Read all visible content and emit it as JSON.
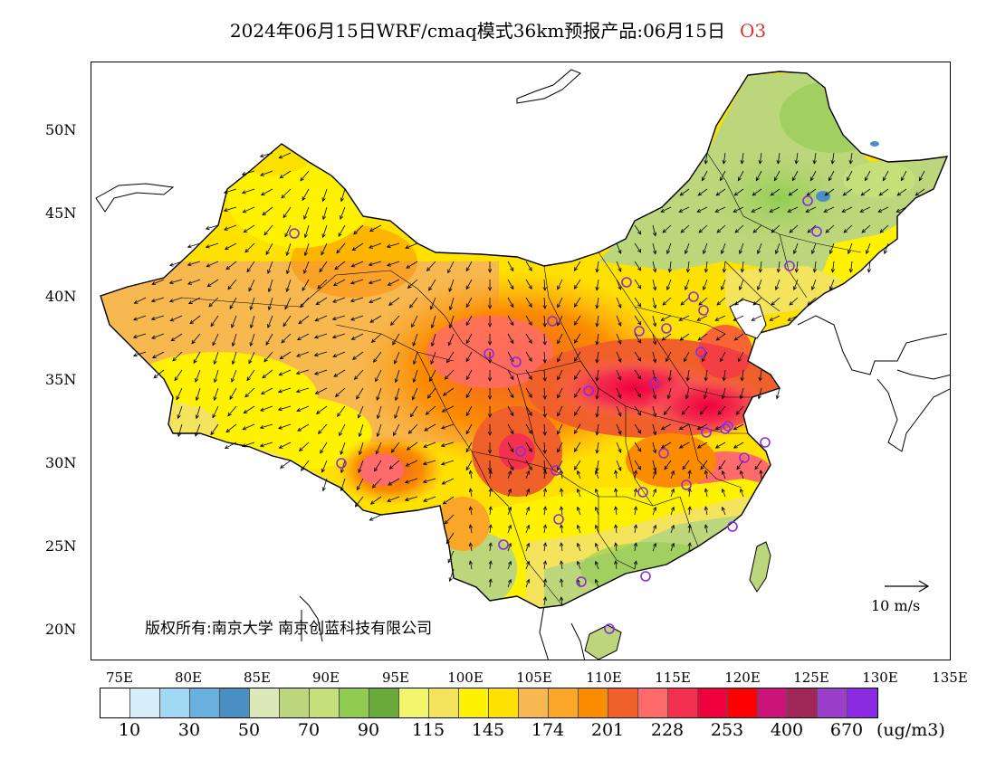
{
  "header": {
    "title": "2024年06月15日WRF/cmaq模式36km预报产品:06月15日",
    "species": "O3"
  },
  "map": {
    "lat_labels": [
      "50N",
      "45N",
      "40N",
      "35N",
      "30N",
      "25N",
      "20N"
    ],
    "lon_labels": [
      "75E",
      "80E",
      "85E",
      "90E",
      "95E",
      "100E",
      "105E",
      "110E",
      "115E",
      "120E",
      "125E",
      "130E",
      "135E"
    ],
    "copyright": "版权所有:南京大学 南京创蓝科技有限公司",
    "scale_label": "10 m/s"
  },
  "legend": {
    "colors": [
      "#ffffff",
      "#d6eefa",
      "#a3d8f4",
      "#6ab0de",
      "#4a8fc4",
      "#dde8b8",
      "#bcd67c",
      "#c5e07a",
      "#90cc50",
      "#6aaa3a",
      "#f3f66a",
      "#f4e35c",
      "#fff200",
      "#ffe100",
      "#f8b850",
      "#faa628",
      "#fb8c00",
      "#f0602a",
      "#ff6b6b",
      "#f3304e",
      "#f0003c",
      "#ff0000",
      "#cc1478",
      "#a02858",
      "#9b3ecc",
      "#8a2be2"
    ],
    "labels": [
      "10",
      "30",
      "50",
      "70",
      "90",
      "115",
      "145",
      "174",
      "201",
      "228",
      "253",
      "400",
      "670"
    ],
    "unit": "(ug/m3)"
  }
}
